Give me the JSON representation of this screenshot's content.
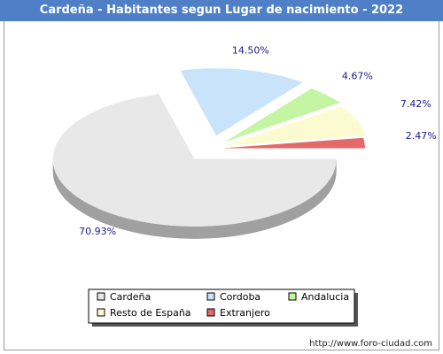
{
  "title": "Cardeña - Habitantes segun Lugar de nacimiento - 2022",
  "source_url": "http://www.foro-ciudad.com",
  "chart_data": {
    "type": "pie",
    "title": "Cardeña - Habitantes segun Lugar de nacimiento - 2022",
    "legend_position": "bottom-center",
    "slices": [
      {
        "label": "Cardeña",
        "value": 70.93,
        "value_label": "70.93%",
        "color": "#e8e8e8",
        "side": "#a0a0a0"
      },
      {
        "label": "Cordoba",
        "value": 14.5,
        "value_label": "14.50%",
        "color": "#c9e3fb",
        "side": "#7191ae"
      },
      {
        "label": "Andalucia",
        "value": 4.67,
        "value_label": "4.67%",
        "color": "#c4f5a3",
        "side": "#6fa43c"
      },
      {
        "label": "Resto de España",
        "value": 7.42,
        "value_label": "7.42%",
        "color": "#fbfbcf",
        "side": "#a6a668"
      },
      {
        "label": "Extranjero",
        "value": 2.47,
        "value_label": "2.47%",
        "color": "#e46a6a",
        "side": "#a01515"
      }
    ]
  }
}
